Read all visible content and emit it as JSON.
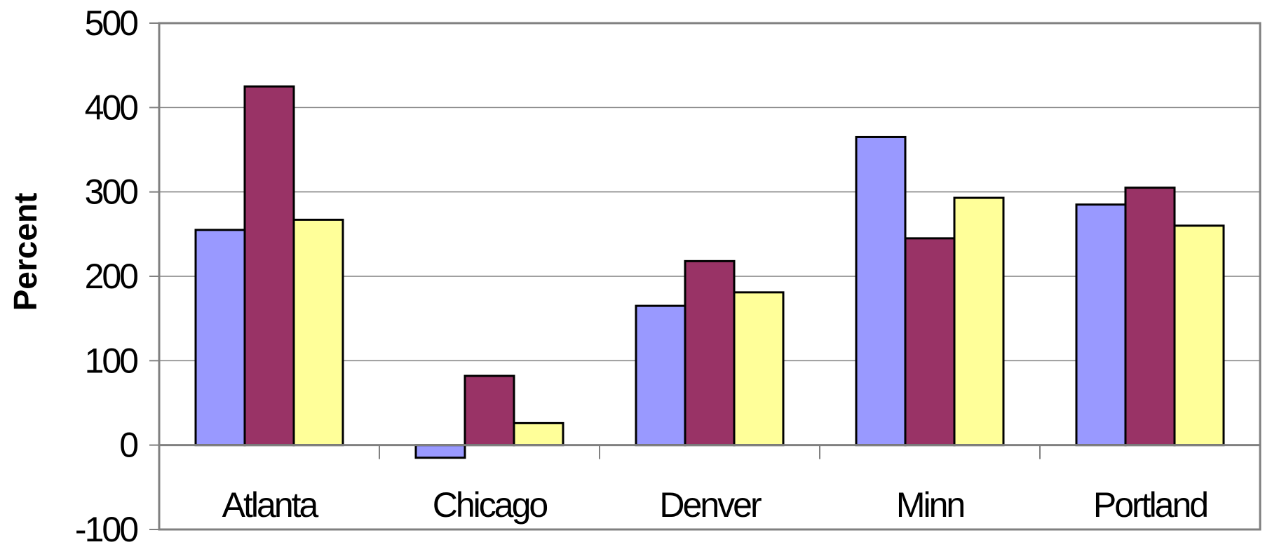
{
  "chart_data": {
    "type": "bar",
    "title": "",
    "xlabel": "",
    "ylabel": "Percent",
    "categories": [
      "Atlanta",
      "Chicago",
      "Denver",
      "Minn",
      "Portland"
    ],
    "series": [
      {
        "color": "#9999ff",
        "values": [
          255,
          -15,
          165,
          365,
          285
        ]
      },
      {
        "color": "#993366",
        "values": [
          425,
          82,
          218,
          245,
          305
        ]
      },
      {
        "color": "#ffff99",
        "values": [
          267,
          26,
          181,
          293,
          260
        ]
      }
    ],
    "ylim": [
      -100,
      500
    ],
    "yticks": [
      -100,
      0,
      100,
      200,
      300,
      400,
      500
    ],
    "grid": true,
    "legend": "none"
  }
}
